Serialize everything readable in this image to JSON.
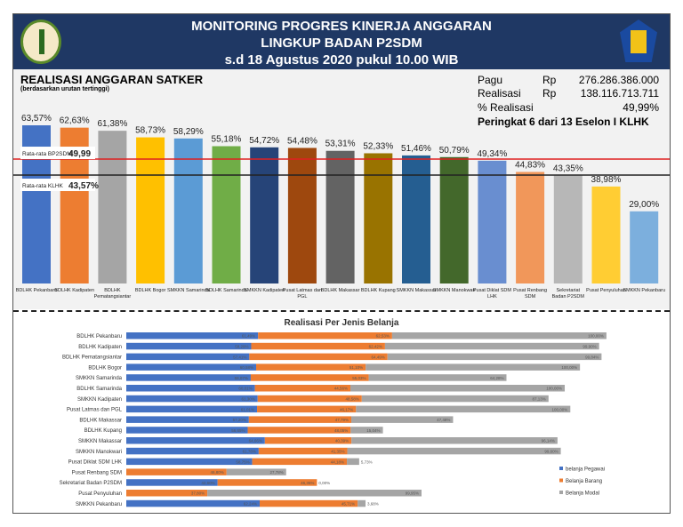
{
  "header": {
    "line1": "MONITORING PROGRES KINERJA ANGGARAN",
    "line2": "LINGKUP BADAN P2SDM",
    "line3": "s.d 18 Agustus 2020 pukul 10.00 WIB"
  },
  "summary": {
    "pagu_label": "Pagu",
    "pagu_cur": "Rp",
    "pagu_value": "276.286.386.000",
    "realisasi_label": "Realisasi",
    "realisasi_cur": "Rp",
    "realisasi_value": "138.116.713.711",
    "persen_label": "% Realisasi",
    "persen_value": "49,99%",
    "peringkat": "Peringkat 6 dari 13 Eselon I KLHK"
  },
  "chart_data": [
    {
      "type": "bar",
      "title": "REALISASI ANGGARAN SATKER",
      "subtitle": "(berdasarkan urutan tertinggi)",
      "categories": [
        "BDLHK Pekanbaru",
        "BDLHK Kadipaten",
        "BDLHK Pematangsiantar",
        "BDLHK Bogor",
        "SMKKN Samarinda",
        "BDLHK Samarinda",
        "SMKKN Kadipaten",
        "Pusat Latmas dan PGL",
        "BDLHK Makassar",
        "BDLHK Kupang",
        "SMKKN Makassar",
        "SMKKN Manokwari",
        "Pusat Diklat SDM LHK",
        "Pusat Renbang SDM",
        "Sekretariat Badan P2SDM",
        "Pusat Penyuluhan",
        "SMKKN Pekanbaru"
      ],
      "values": [
        63.57,
        62.63,
        61.38,
        58.73,
        58.29,
        55.18,
        54.72,
        54.48,
        53.31,
        52.33,
        51.46,
        50.79,
        49.34,
        44.83,
        43.35,
        38.98,
        29.0
      ],
      "labels": [
        "63,57%",
        "62,63%",
        "61,38%",
        "58,73%",
        "58,29%",
        "55,18%",
        "54,72%",
        "54,48%",
        "53,31%",
        "52,33%",
        "51,46%",
        "50,79%",
        "49,34%",
        "44,83%",
        "43,35%",
        "38,98%",
        "29,00%"
      ],
      "colors": [
        "#4472c4",
        "#ed7d31",
        "#a5a5a5",
        "#ffc000",
        "#5b9bd5",
        "#70ad47",
        "#264478",
        "#9e480e",
        "#636363",
        "#997300",
        "#255e91",
        "#43682b",
        "#698ed0",
        "#f1975a",
        "#b7b7b7",
        "#ffcd33",
        "#7cafdd"
      ],
      "reference_lines": [
        {
          "label": "Rata-rata BP2SDM",
          "value_label": "49,99",
          "value": 49.99,
          "color": "#e02020"
        },
        {
          "label": "Rata-rata KLHK",
          "value_label": "43,57%",
          "value": 43.57,
          "color": "#222222"
        }
      ],
      "ylim": [
        0,
        70
      ],
      "grid": false
    },
    {
      "type": "bar",
      "orientation": "horizontal",
      "title": "Realisasi Per Jenis Belanja",
      "legend_position": "right",
      "categories": [
        "BDLHK Pekanbaru",
        "BDLHK Kadipaten",
        "BDLHK Pematangsiantar",
        "BDLHK Bogor",
        "SMKKN Samarinda",
        "BDLHK Samarinda",
        "SMKKN Kadipaten",
        "Pusat Latmas dan PGL",
        "BDLHK Makassar",
        "BDLHK Kupang",
        "SMKKN Makassar",
        "SMKKN Manokwari",
        "Pusat Diklat SDM LHK",
        "Pusat Renbang SDM",
        "Sekretariat Badan P2SDM",
        "Pusat Penyuluhan",
        "SMKKN Pekanbaru"
      ],
      "series": [
        {
          "name": "belanja Pegawai",
          "color": "#4472c4",
          "values": [
            61.49,
            58.29,
            57.41,
            60.58,
            58.07,
            60.01,
            61.3,
            61.01,
            57.2,
            56.65,
            64.66,
            61.78,
            58.75,
            null,
            42.6,
            null,
            62.24
          ]
        },
        {
          "name": "Belanja Barang",
          "color": "#ed7d31",
          "values": [
            62.53,
            62.42,
            64.49,
            51.1,
            55.03,
            44.56,
            48.58,
            46.17,
            47.79,
            48.05,
            40.39,
            41.35,
            44.18,
            46.8,
            46.35,
            37.8,
            45.71
          ]
        },
        {
          "name": "Belanja Modal",
          "color": "#a5a5a5",
          "values": [
            100.0,
            99.9,
            99.84,
            100.0,
            64.28,
            100.0,
            87.13,
            100.0,
            47.48,
            15.04,
            96.14,
            99.6,
            5.73,
            27.78,
            0.0,
            99.95,
            3.68
          ]
        }
      ],
      "grid": false
    }
  ]
}
